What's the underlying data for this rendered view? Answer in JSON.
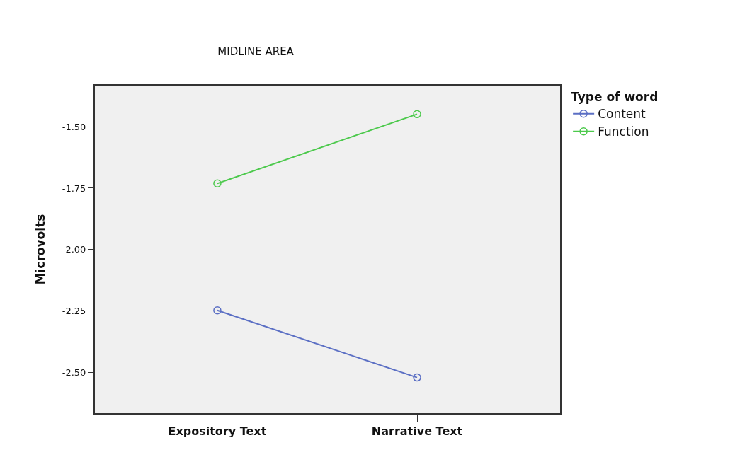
{
  "chart_data": {
    "type": "line",
    "title": "MIDLINE AREA",
    "xlabel": null,
    "ylabel": "Microvolts",
    "legend_title": "Type of word",
    "categories": [
      "Expository Text",
      "Narrative Text"
    ],
    "series": [
      {
        "name": "Content",
        "color": "#5b6fc4",
        "values": [
          -2.247,
          -2.52
        ]
      },
      {
        "name": "Function",
        "color": "#4cc94c",
        "values": [
          -1.731,
          -1.449
        ]
      }
    ],
    "ylim": [
      -2.665,
      -1.333
    ],
    "yticks": [
      {
        "value": -1.5,
        "label": "-1.50"
      },
      {
        "value": -1.75,
        "label": "-1.75"
      },
      {
        "value": -2.0,
        "label": "-2.00"
      },
      {
        "value": -2.25,
        "label": "-2.25"
      },
      {
        "value": -2.5,
        "label": "-2.50"
      }
    ],
    "marker": "circle",
    "line_style": "solid",
    "grid": false,
    "legend": "top right"
  }
}
